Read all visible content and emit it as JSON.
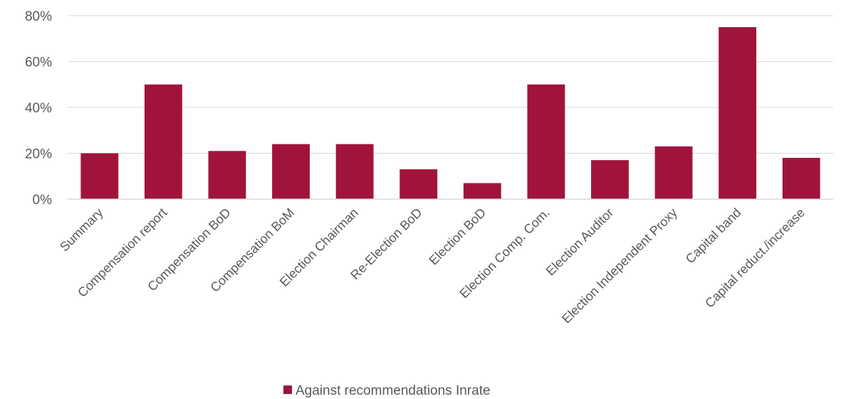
{
  "chart_data": {
    "type": "bar",
    "title": "",
    "xlabel": "",
    "ylabel": "",
    "categories": [
      "Summary",
      "Compensation report",
      "Compensation BoD",
      "Compensation BoM",
      "Election Chairman",
      "Re-Election BoD",
      "Election BoD",
      "Election Comp. Com.",
      "Election Auditor",
      "Election Independent Proxy",
      "Capital band",
      "Capital reduct./increase"
    ],
    "series": [
      {
        "name": "Against recommendations Inrate",
        "color": "#a0143c",
        "values": [
          20,
          50,
          21,
          24,
          24,
          13,
          7,
          50,
          17,
          23,
          75,
          18
        ]
      }
    ],
    "ylim": [
      0,
      80
    ],
    "yticks": [
      0,
      20,
      40,
      60,
      80
    ],
    "ytick_labels": [
      "0%",
      "20%",
      "40%",
      "60%",
      "80%"
    ],
    "y_unit": "percent",
    "grid": true,
    "legend": "bottom-center"
  }
}
